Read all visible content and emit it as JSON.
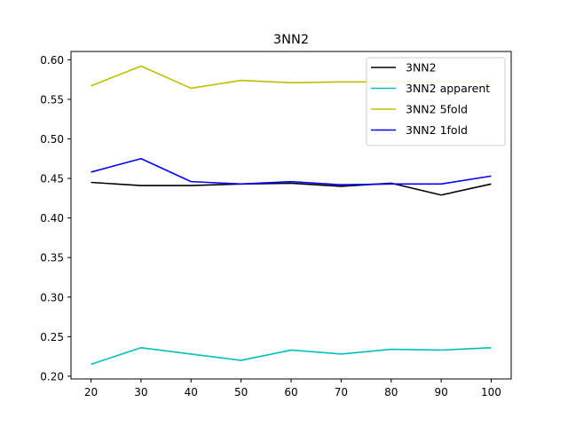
{
  "chart_data": {
    "type": "line",
    "title": "3NN2",
    "xlabel": "",
    "ylabel": "",
    "x": [
      20,
      30,
      40,
      50,
      60,
      70,
      80,
      90,
      100
    ],
    "xlim": [
      16,
      104
    ],
    "ylim": [
      0.1965,
      0.6105
    ],
    "xticks": [
      20,
      30,
      40,
      50,
      60,
      70,
      80,
      90,
      100
    ],
    "yticks": [
      0.2,
      0.25,
      0.3,
      0.35,
      0.4,
      0.45,
      0.5,
      0.55,
      0.6
    ],
    "ytick_labels": [
      "0.20",
      "0.25",
      "0.30",
      "0.35",
      "0.40",
      "0.45",
      "0.50",
      "0.55",
      "0.60"
    ],
    "grid": false,
    "legend_position": "top-right",
    "series": [
      {
        "name": "3NN2",
        "color": "#000000",
        "values": [
          0.445,
          0.441,
          0.441,
          0.443,
          0.444,
          0.44,
          0.444,
          0.429,
          0.443
        ]
      },
      {
        "name": "3NN2 apparent",
        "color": "#00bfbf",
        "values": [
          0.215,
          0.236,
          0.228,
          0.22,
          0.233,
          0.228,
          0.234,
          0.233,
          0.236
        ]
      },
      {
        "name": "3NN2 5fold",
        "color": "#bfbf00",
        "values": [
          0.567,
          0.592,
          0.564,
          0.574,
          0.571,
          0.572,
          0.572,
          0.572,
          0.572
        ]
      },
      {
        "name": "3NN2 1fold",
        "color": "#0000ff",
        "values": [
          0.458,
          0.475,
          0.446,
          0.443,
          0.446,
          0.442,
          0.443,
          0.443,
          0.453
        ]
      }
    ]
  }
}
